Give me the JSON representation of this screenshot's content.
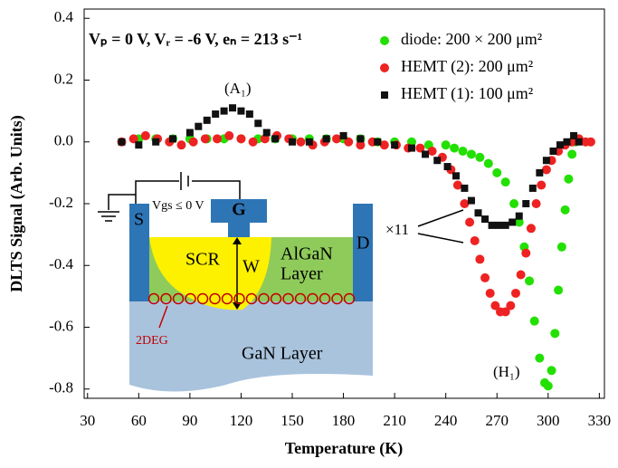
{
  "chart_data": {
    "type": "scatter",
    "xlabel": "Temperature (K)",
    "ylabel": "DLTS Signal (Arb. Units)",
    "xlim": [
      28,
      333
    ],
    "ylim": [
      -0.83,
      0.43
    ],
    "xticks": [
      30,
      60,
      90,
      120,
      150,
      180,
      210,
      240,
      270,
      300,
      330
    ],
    "yticks": [
      0.4,
      0.2,
      {
        "value": 0,
        "label": "0.0"
      },
      -0.2,
      -0.4,
      -0.6,
      -0.8
    ],
    "legend": "upper right",
    "series": [
      {
        "name": "diode: 200 × 200 μm²",
        "color": "#22e000",
        "marker": "circle",
        "x": [
          60,
          70,
          80,
          90,
          100,
          110,
          120,
          130,
          140,
          150,
          160,
          170,
          180,
          190,
          200,
          210,
          220,
          230,
          240,
          245,
          250,
          255,
          260,
          265,
          270,
          275,
          280,
          283,
          286,
          289,
          292,
          295,
          298,
          300,
          302,
          304,
          306,
          308,
          310,
          312,
          314,
          316,
          318
        ],
        "values": [
          0.01,
          0.01,
          0.01,
          0.01,
          0.01,
          0.01,
          0.01,
          0.01,
          0.01,
          0.01,
          0.01,
          0.01,
          0.01,
          0.01,
          0.0,
          0.0,
          0.0,
          -0.01,
          -0.01,
          -0.02,
          -0.03,
          -0.04,
          -0.05,
          -0.07,
          -0.1,
          -0.13,
          -0.2,
          -0.26,
          -0.34,
          -0.45,
          -0.58,
          -0.7,
          -0.78,
          -0.79,
          -0.74,
          -0.62,
          -0.48,
          -0.34,
          -0.22,
          -0.12,
          -0.04,
          0.0,
          0.01
        ]
      },
      {
        "name": "HEMT (2): 200 μm²",
        "color": "#ee2222",
        "marker": "circle",
        "x": [
          50,
          57,
          64,
          71,
          78,
          85,
          92,
          99,
          106,
          113,
          120,
          127,
          134,
          141,
          148,
          155,
          162,
          169,
          176,
          183,
          190,
          197,
          204,
          211,
          218,
          225,
          232,
          238,
          243,
          247,
          251,
          254,
          257,
          260,
          263,
          266,
          269,
          272,
          275,
          278,
          281,
          284,
          287,
          290,
          293,
          296,
          299,
          302,
          306,
          310,
          314,
          318,
          322,
          325
        ],
        "values": [
          0.0,
          0.01,
          0.02,
          0.01,
          0.0,
          -0.01,
          0.0,
          0.01,
          0.01,
          0.02,
          0.01,
          0.0,
          0.01,
          0.02,
          0.01,
          0.0,
          -0.01,
          0.0,
          0.01,
          0.0,
          -0.01,
          0.0,
          -0.01,
          -0.01,
          -0.02,
          -0.02,
          -0.03,
          -0.05,
          -0.09,
          -0.14,
          -0.2,
          -0.26,
          -0.32,
          -0.38,
          -0.44,
          -0.49,
          -0.53,
          -0.55,
          -0.55,
          -0.53,
          -0.49,
          -0.43,
          -0.36,
          -0.28,
          -0.2,
          -0.14,
          -0.09,
          -0.06,
          -0.03,
          -0.01,
          0.0,
          0.01,
          0.0,
          0.0
        ]
      },
      {
        "name": "HEMT (1): 100 μm²",
        "color": "#111111",
        "marker": "square",
        "x": [
          50,
          60,
          70,
          80,
          90,
          95,
          100,
          105,
          110,
          115,
          120,
          125,
          130,
          135,
          140,
          150,
          160,
          170,
          180,
          190,
          200,
          210,
          220,
          228,
          235,
          241,
          246,
          251,
          255,
          259,
          263,
          267,
          271,
          275,
          279,
          283,
          287,
          291,
          295,
          299,
          303,
          307,
          311,
          315,
          318
        ],
        "values": [
          0.0,
          -0.01,
          0.0,
          0.01,
          0.03,
          0.05,
          0.07,
          0.09,
          0.1,
          0.11,
          0.1,
          0.09,
          0.06,
          0.03,
          0.01,
          0.0,
          0.0,
          0.01,
          0.02,
          0.01,
          0.0,
          -0.01,
          -0.02,
          -0.04,
          -0.06,
          -0.08,
          -0.11,
          -0.15,
          -0.19,
          -0.23,
          -0.25,
          -0.27,
          -0.27,
          -0.27,
          -0.26,
          -0.24,
          -0.2,
          -0.15,
          -0.1,
          -0.06,
          -0.03,
          -0.01,
          0.0,
          0.02,
          0.0
        ]
      }
    ],
    "annotations": [
      "Vₚ = 0 V, Vᵣ = -6 V, eₙ = 213 s⁻¹",
      "(A₁)",
      "(H₁)",
      "×11"
    ],
    "inset_labels": {
      "source": "S",
      "gate": "G",
      "drain": "D",
      "scr": "SCR",
      "width": "W",
      "algan": "AlGaN",
      "algan2": "Layer",
      "gan": "GaN Layer",
      "twodeg": "2DEG",
      "vgs": "Vgs ≤ 0 V"
    }
  }
}
